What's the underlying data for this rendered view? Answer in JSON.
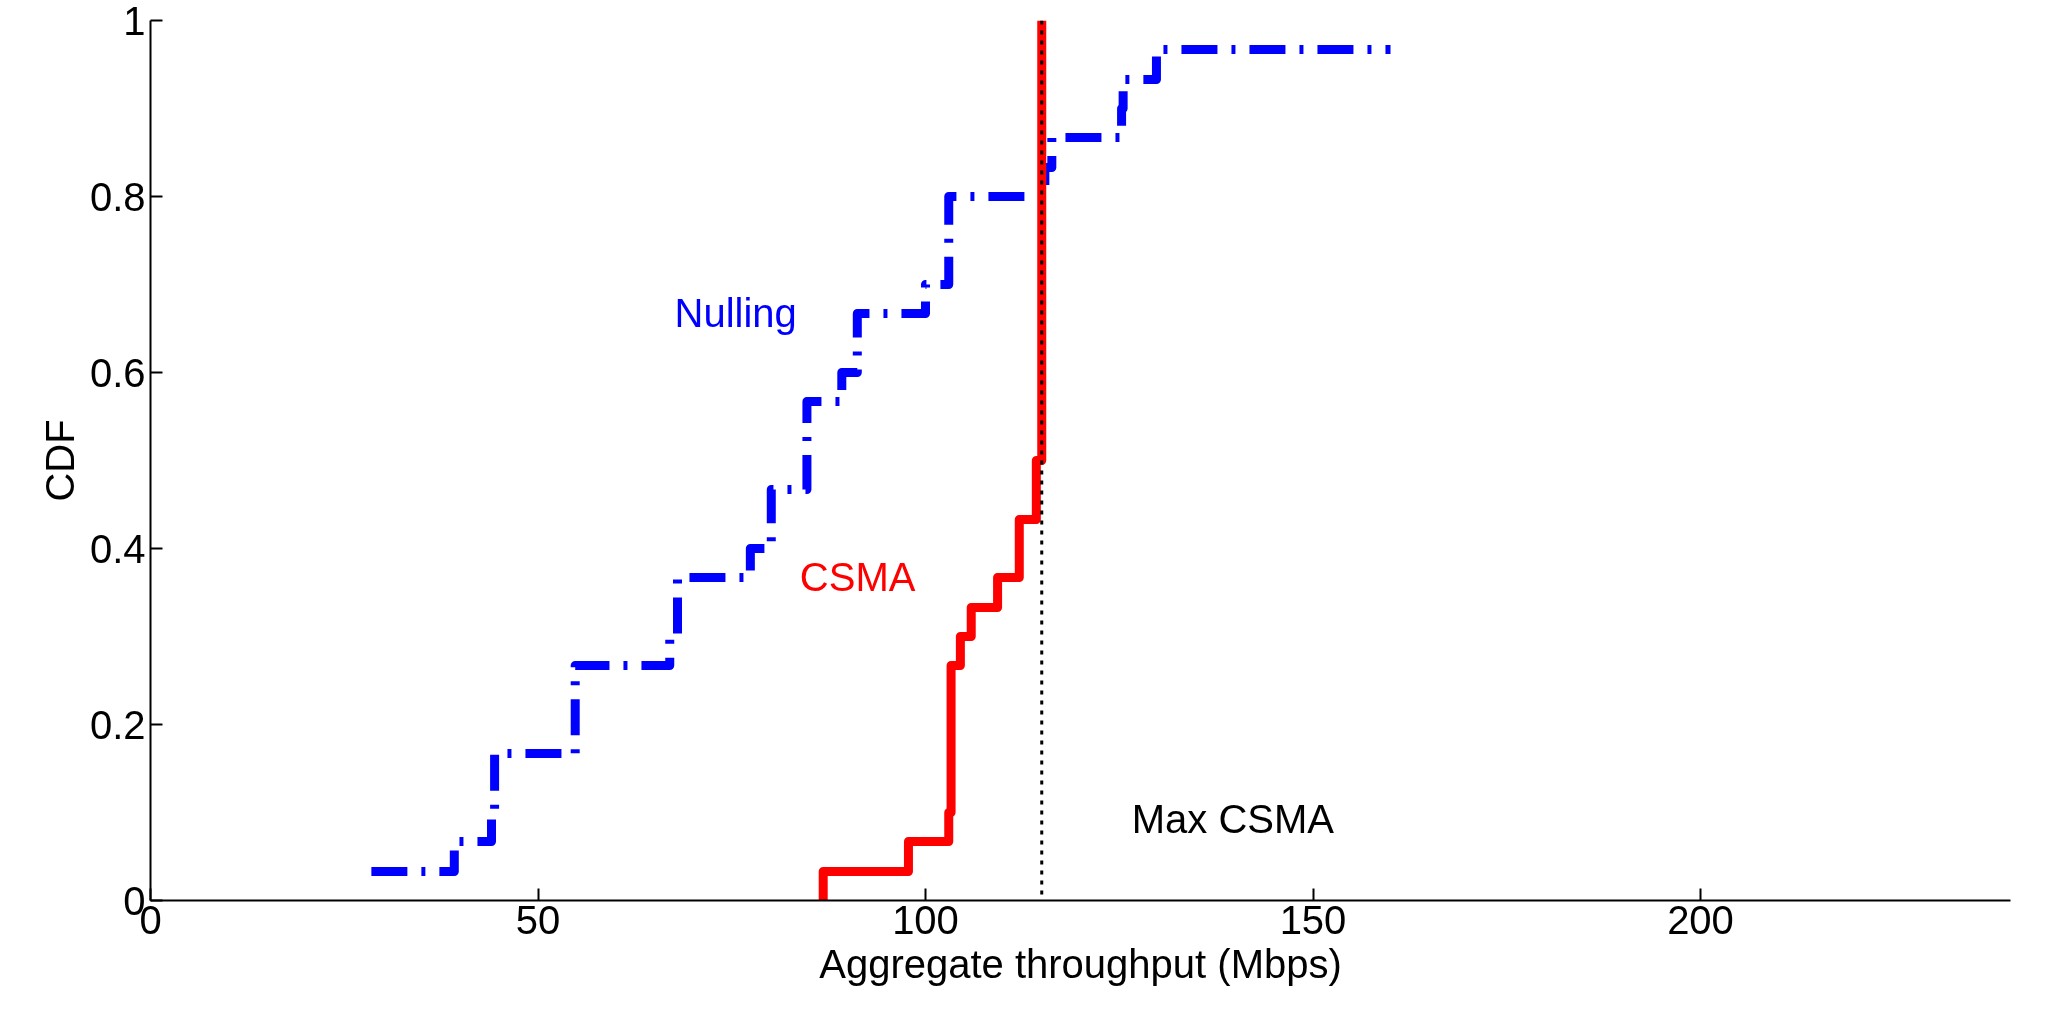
{
  "chart_data": {
    "type": "step",
    "xlabel": "Aggregate throughput (Mbps)",
    "ylabel": "CDF",
    "xlim": [
      0,
      240
    ],
    "xticks": [
      0,
      50,
      100,
      150,
      200
    ],
    "ylim": [
      0,
      1
    ],
    "yticks": [
      0,
      0.2,
      0.4,
      0.6,
      0.8,
      1
    ],
    "grid": false,
    "series": [
      {
        "name": "Nulling",
        "color": "#0000ff",
        "line_style": "dashed",
        "x": [
          28.5,
          39.2,
          44.0,
          44.4,
          54.8,
          67.0,
          68.0,
          77.4,
          80.1,
          84.7,
          89.2,
          91.2,
          100.0,
          103.0,
          115.4,
          116.3,
          125.3,
          125.5,
          129.8,
          160.0
        ],
        "values": [
          0.033,
          0.067,
          0.1,
          0.167,
          0.267,
          0.3,
          0.367,
          0.4,
          0.467,
          0.567,
          0.6,
          0.667,
          0.7,
          0.8,
          0.833,
          0.867,
          0.9,
          0.933,
          0.967,
          0.967
        ]
      },
      {
        "name": "CSMA",
        "color": "#ff0000",
        "line_style": "solid",
        "x": [
          86.8,
          86.8,
          97.8,
          103.0,
          103.3,
          104.5,
          105.9,
          109.3,
          112.1,
          114.3,
          115.0
        ],
        "values": [
          0,
          0.033,
          0.067,
          0.1,
          0.267,
          0.3,
          0.333,
          0.367,
          0.433,
          0.5,
          1.0
        ]
      }
    ],
    "ref_lines": [
      {
        "axis": "x",
        "value": 115,
        "label": "Max CSMA",
        "color": "#000000",
        "line_style": "dotted"
      }
    ]
  }
}
